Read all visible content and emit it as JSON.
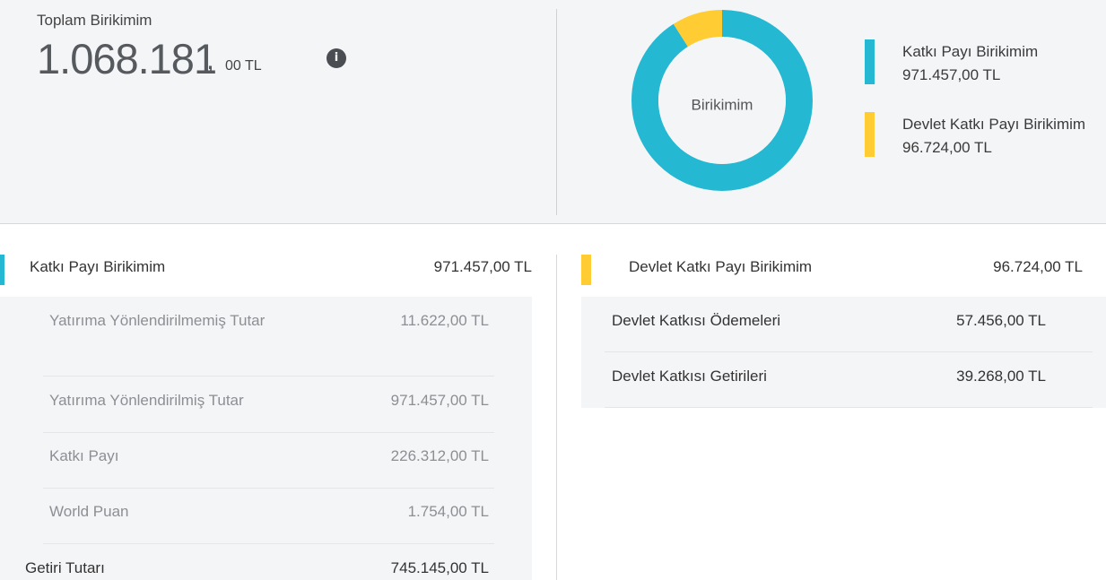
{
  "summary": {
    "total_label": "Toplam Birikimim",
    "total_integer": "1.068.181",
    "total_comma": ",",
    "total_decimal": "00 TL",
    "info_icon": "i"
  },
  "donut": {
    "center_label": "Birikimim",
    "segments": [
      {
        "name": "Katkı Payı Birikimim",
        "value": 971457.0,
        "color": "#25b8d2"
      },
      {
        "name": "Devlet Katkı Payı Birikimim",
        "value": 96724.0,
        "color": "#ffcc33"
      }
    ]
  },
  "legend": [
    {
      "name": "Katkı Payı Birikimim",
      "value": "971.457,00 TL",
      "color": "#25b8d2"
    },
    {
      "name": "Devlet Katkı Payı Birikimim",
      "value": "96.724,00 TL",
      "color": "#ffcc33"
    }
  ],
  "left": {
    "title": "Katkı Payı Birikimim",
    "total": "971.457,00 TL",
    "accent_color": "#25b8d2",
    "rows": [
      {
        "label": "Yatırıma Yönlendirilmemiş Tutar",
        "value": "11.622,00 TL"
      },
      {
        "label": "Yatırıma Yönlendirilmiş Tutar",
        "value": "971.457,00 TL"
      },
      {
        "label": "Katkı Payı",
        "value": "226.312,00 TL"
      },
      {
        "label": "World Puan",
        "value": "1.754,00 TL"
      }
    ],
    "getiri_label": "Getiri Tutarı",
    "getiri_value": "745.145,00 TL"
  },
  "right": {
    "title": "Devlet Katkı Payı Birikimim",
    "total": "96.724,00 TL",
    "accent_color": "#ffcc33",
    "rows": [
      {
        "label": "Devlet Katkısı Ödemeleri",
        "value": "57.456,00 TL"
      },
      {
        "label": "Devlet Katkısı Getirileri",
        "value": "39.268,00 TL"
      }
    ]
  }
}
